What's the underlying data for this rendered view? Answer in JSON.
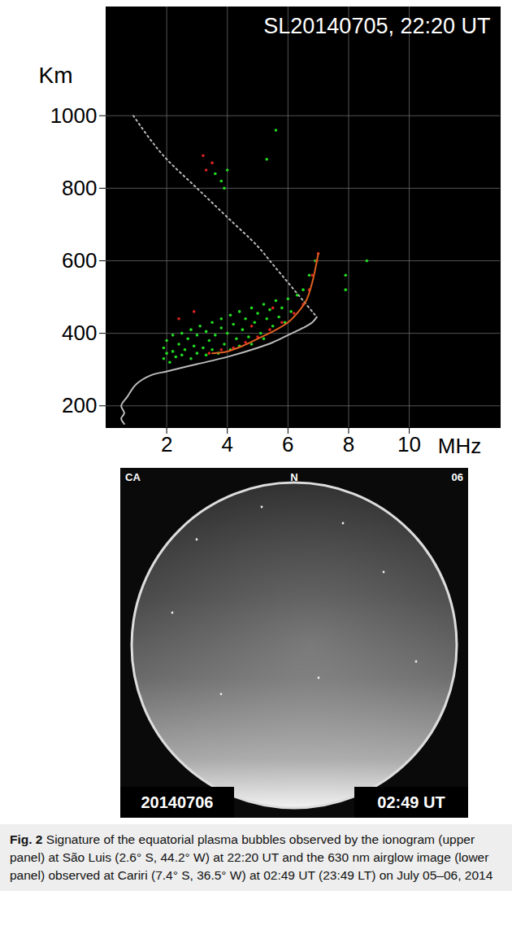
{
  "chart_data": {
    "type": "scatter",
    "title": "SL20140705, 22:20 UT",
    "x_label": "MHz",
    "y_label": "Km",
    "xlim": [
      0,
      13
    ],
    "xticks": [
      2,
      4,
      6,
      8,
      10
    ],
    "ylim": [
      140,
      1300
    ],
    "yticks": [
      200,
      400,
      600,
      800,
      1000
    ],
    "grid": true,
    "tick_labels": true,
    "series": [
      {
        "type": "line",
        "color": "#bbbbbb",
        "line_style": "solid",
        "x": [
          0.6,
          0.5,
          0.6,
          0.5,
          0.7,
          1.0,
          1.5,
          2,
          3,
          4,
          5,
          5.5,
          6,
          6.5,
          6.8,
          6.95
        ],
        "values": [
          150,
          165,
          180,
          200,
          225,
          260,
          285,
          295,
          315,
          335,
          360,
          375,
          395,
          415,
          430,
          445
        ]
      },
      {
        "type": "line",
        "color": "#bbbbbb",
        "line_style": "dotted",
        "x": [
          0.9,
          1.5,
          2,
          3,
          4,
          5,
          5.5,
          6,
          6.5,
          6.9
        ],
        "values": [
          1000,
          930,
          880,
          800,
          720,
          640,
          590,
          540,
          490,
          450
        ]
      },
      {
        "type": "scatter",
        "color": "#22dd22",
        "marker": "dot",
        "x": [
          1.9,
          1.9,
          2.0,
          2.0,
          2.1,
          2.2,
          2.2,
          2.3,
          2.4,
          2.5,
          2.5,
          2.6,
          2.7,
          2.8,
          2.8,
          2.9,
          3.0,
          3.0,
          3.1,
          3.2,
          3.3,
          3.3,
          3.4,
          3.5,
          3.5,
          3.6,
          3.7,
          3.8,
          3.8,
          3.9,
          4.0,
          4.1,
          4.1,
          4.2,
          4.3,
          4.4,
          4.4,
          4.5,
          4.6,
          4.7,
          4.8,
          4.8,
          4.9,
          5.0,
          5.1,
          5.2,
          5.2,
          5.3,
          5.4,
          5.5,
          5.6,
          5.7,
          5.8,
          5.9,
          6.0,
          6.1,
          6.3,
          6.5,
          6.7,
          6.9,
          3.6,
          3.8,
          4.0,
          3.9,
          5.3,
          7.9,
          7.9,
          8.6,
          5.6
        ],
        "values": [
          330,
          360,
          345,
          380,
          320,
          350,
          395,
          335,
          370,
          340,
          400,
          355,
          385,
          330,
          410,
          365,
          345,
          395,
          420,
          360,
          340,
          405,
          380,
          430,
          355,
          395,
          345,
          415,
          440,
          370,
          400,
          355,
          450,
          425,
          385,
          460,
          365,
          410,
          440,
          390,
          470,
          370,
          430,
          455,
          400,
          480,
          385,
          440,
          465,
          420,
          490,
          445,
          470,
          430,
          495,
          460,
          505,
          520,
          560,
          600,
          840,
          820,
          850,
          800,
          880,
          560,
          520,
          600,
          960
        ]
      },
      {
        "type": "scatter",
        "color": "#dd2222",
        "marker": "dot",
        "x": [
          3.2,
          3.3,
          3.5,
          2.4,
          2.9,
          3.4,
          3.8,
          4.2,
          4.6,
          5.0,
          5.4,
          5.8,
          6.2,
          6.5,
          6.7,
          6.8,
          6.95,
          7.0,
          4.8,
          5.5
        ],
        "values": [
          890,
          850,
          870,
          440,
          460,
          345,
          355,
          360,
          375,
          390,
          410,
          430,
          455,
          480,
          520,
          560,
          600,
          620,
          420,
          470
        ]
      },
      {
        "type": "line",
        "color": "#e06020",
        "line_style": "solid",
        "x": [
          3.5,
          4,
          4.5,
          5,
          5.5,
          6,
          6.3,
          6.6,
          6.8,
          7.0
        ],
        "values": [
          345,
          350,
          365,
          385,
          405,
          430,
          455,
          490,
          540,
          620
        ]
      }
    ]
  },
  "image_panel": {
    "corner_labels": {
      "top_left": "CA",
      "top_center": "N",
      "top_right": "06"
    },
    "date": "20140706",
    "time": "02:49 UT"
  },
  "caption": {
    "label": "Fig. 2",
    "text": "Signature of the equatorial plasma bubbles observed by the ionogram (upper panel) at São Luis (2.6° S, 44.2° W) at 22:20 UT and the 630 nm airglow image (lower panel) observed at Cariri (7.4° S, 36.5° W) at 02:49 UT (23:49 LT) on July 05–06, 2014"
  }
}
